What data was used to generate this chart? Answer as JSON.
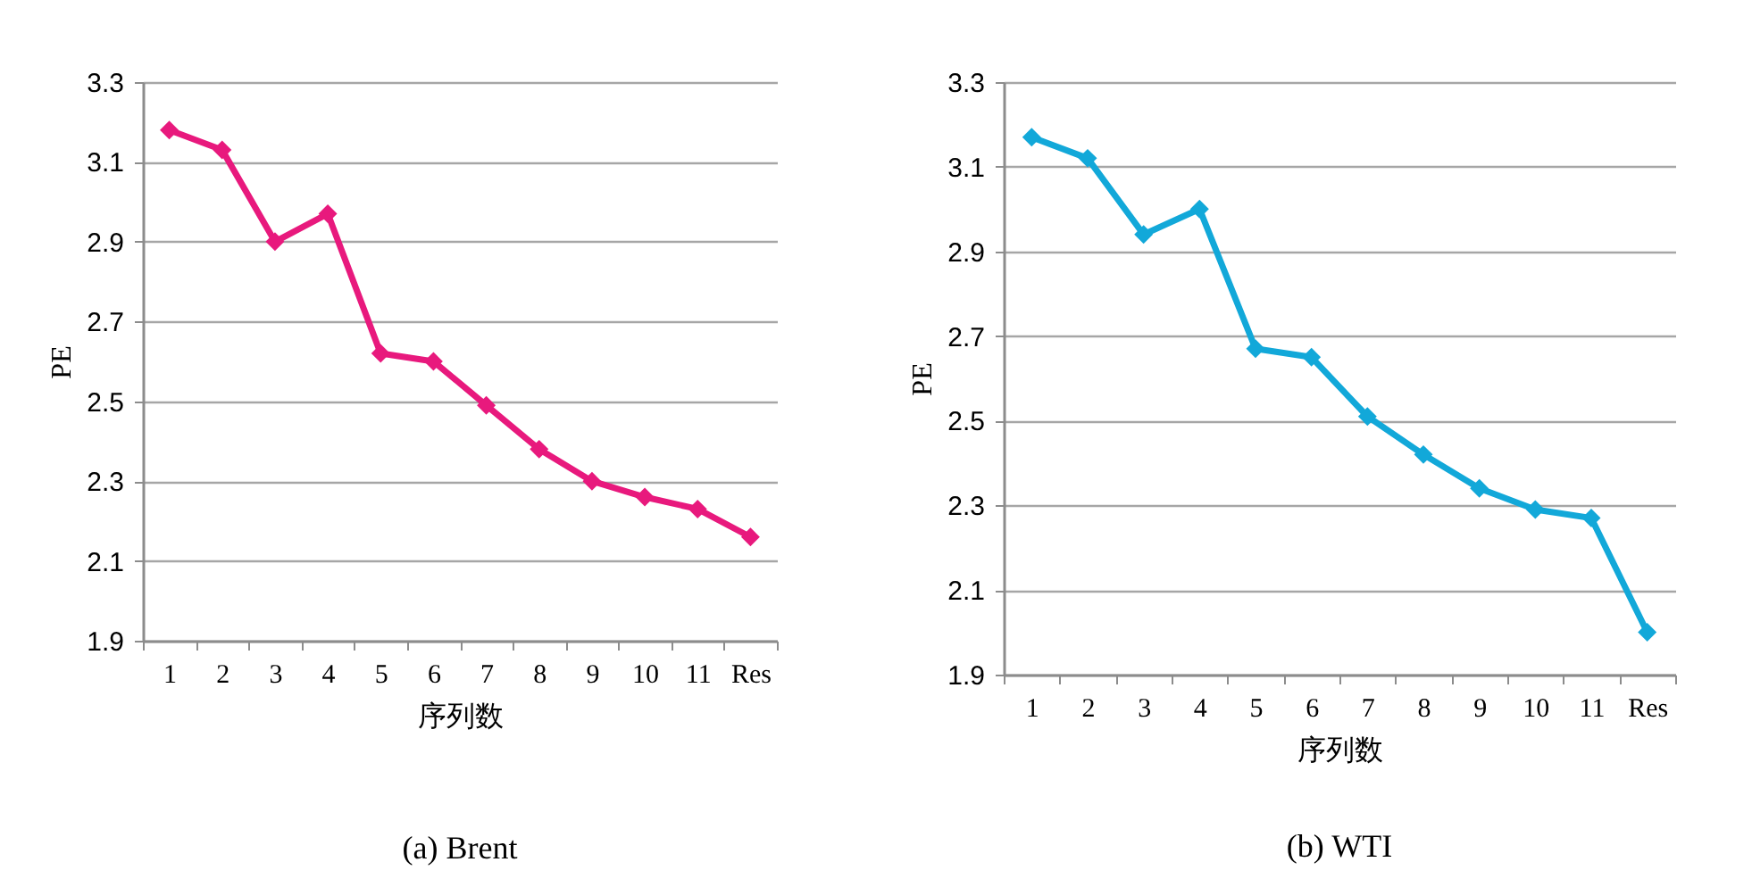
{
  "chart_data": [
    {
      "type": "line",
      "title": "(a) Brent",
      "xlabel": "序列数",
      "ylabel": "PE",
      "categories": [
        "1",
        "2",
        "3",
        "4",
        "5",
        "6",
        "7",
        "8",
        "9",
        "10",
        "11",
        "Res"
      ],
      "series": [
        {
          "color": "#e8197d",
          "values": [
            3.18,
            3.13,
            2.9,
            2.97,
            2.62,
            2.6,
            2.49,
            2.38,
            2.3,
            2.26,
            2.23,
            2.16
          ]
        }
      ],
      "ylim": [
        1.9,
        3.3
      ],
      "yticks": [
        1.9,
        2.1,
        2.3,
        2.5,
        2.7,
        2.9,
        3.1,
        3.3
      ],
      "grid": "y",
      "marker": "diamond",
      "line_style": "solid"
    },
    {
      "type": "line",
      "title": "(b) WTI",
      "xlabel": "序列数",
      "ylabel": "PE",
      "categories": [
        "1",
        "2",
        "3",
        "4",
        "5",
        "6",
        "7",
        "8",
        "9",
        "10",
        "11",
        "Res"
      ],
      "series": [
        {
          "color": "#12a8d9",
          "values": [
            3.17,
            3.12,
            2.94,
            3.0,
            2.67,
            2.65,
            2.51,
            2.42,
            2.34,
            2.29,
            2.27,
            2.0
          ]
        }
      ],
      "ylim": [
        1.9,
        3.3
      ],
      "yticks": [
        1.9,
        2.1,
        2.3,
        2.5,
        2.7,
        2.9,
        3.1,
        3.3
      ],
      "grid": "y",
      "marker": "diamond",
      "line_style": "solid"
    }
  ]
}
